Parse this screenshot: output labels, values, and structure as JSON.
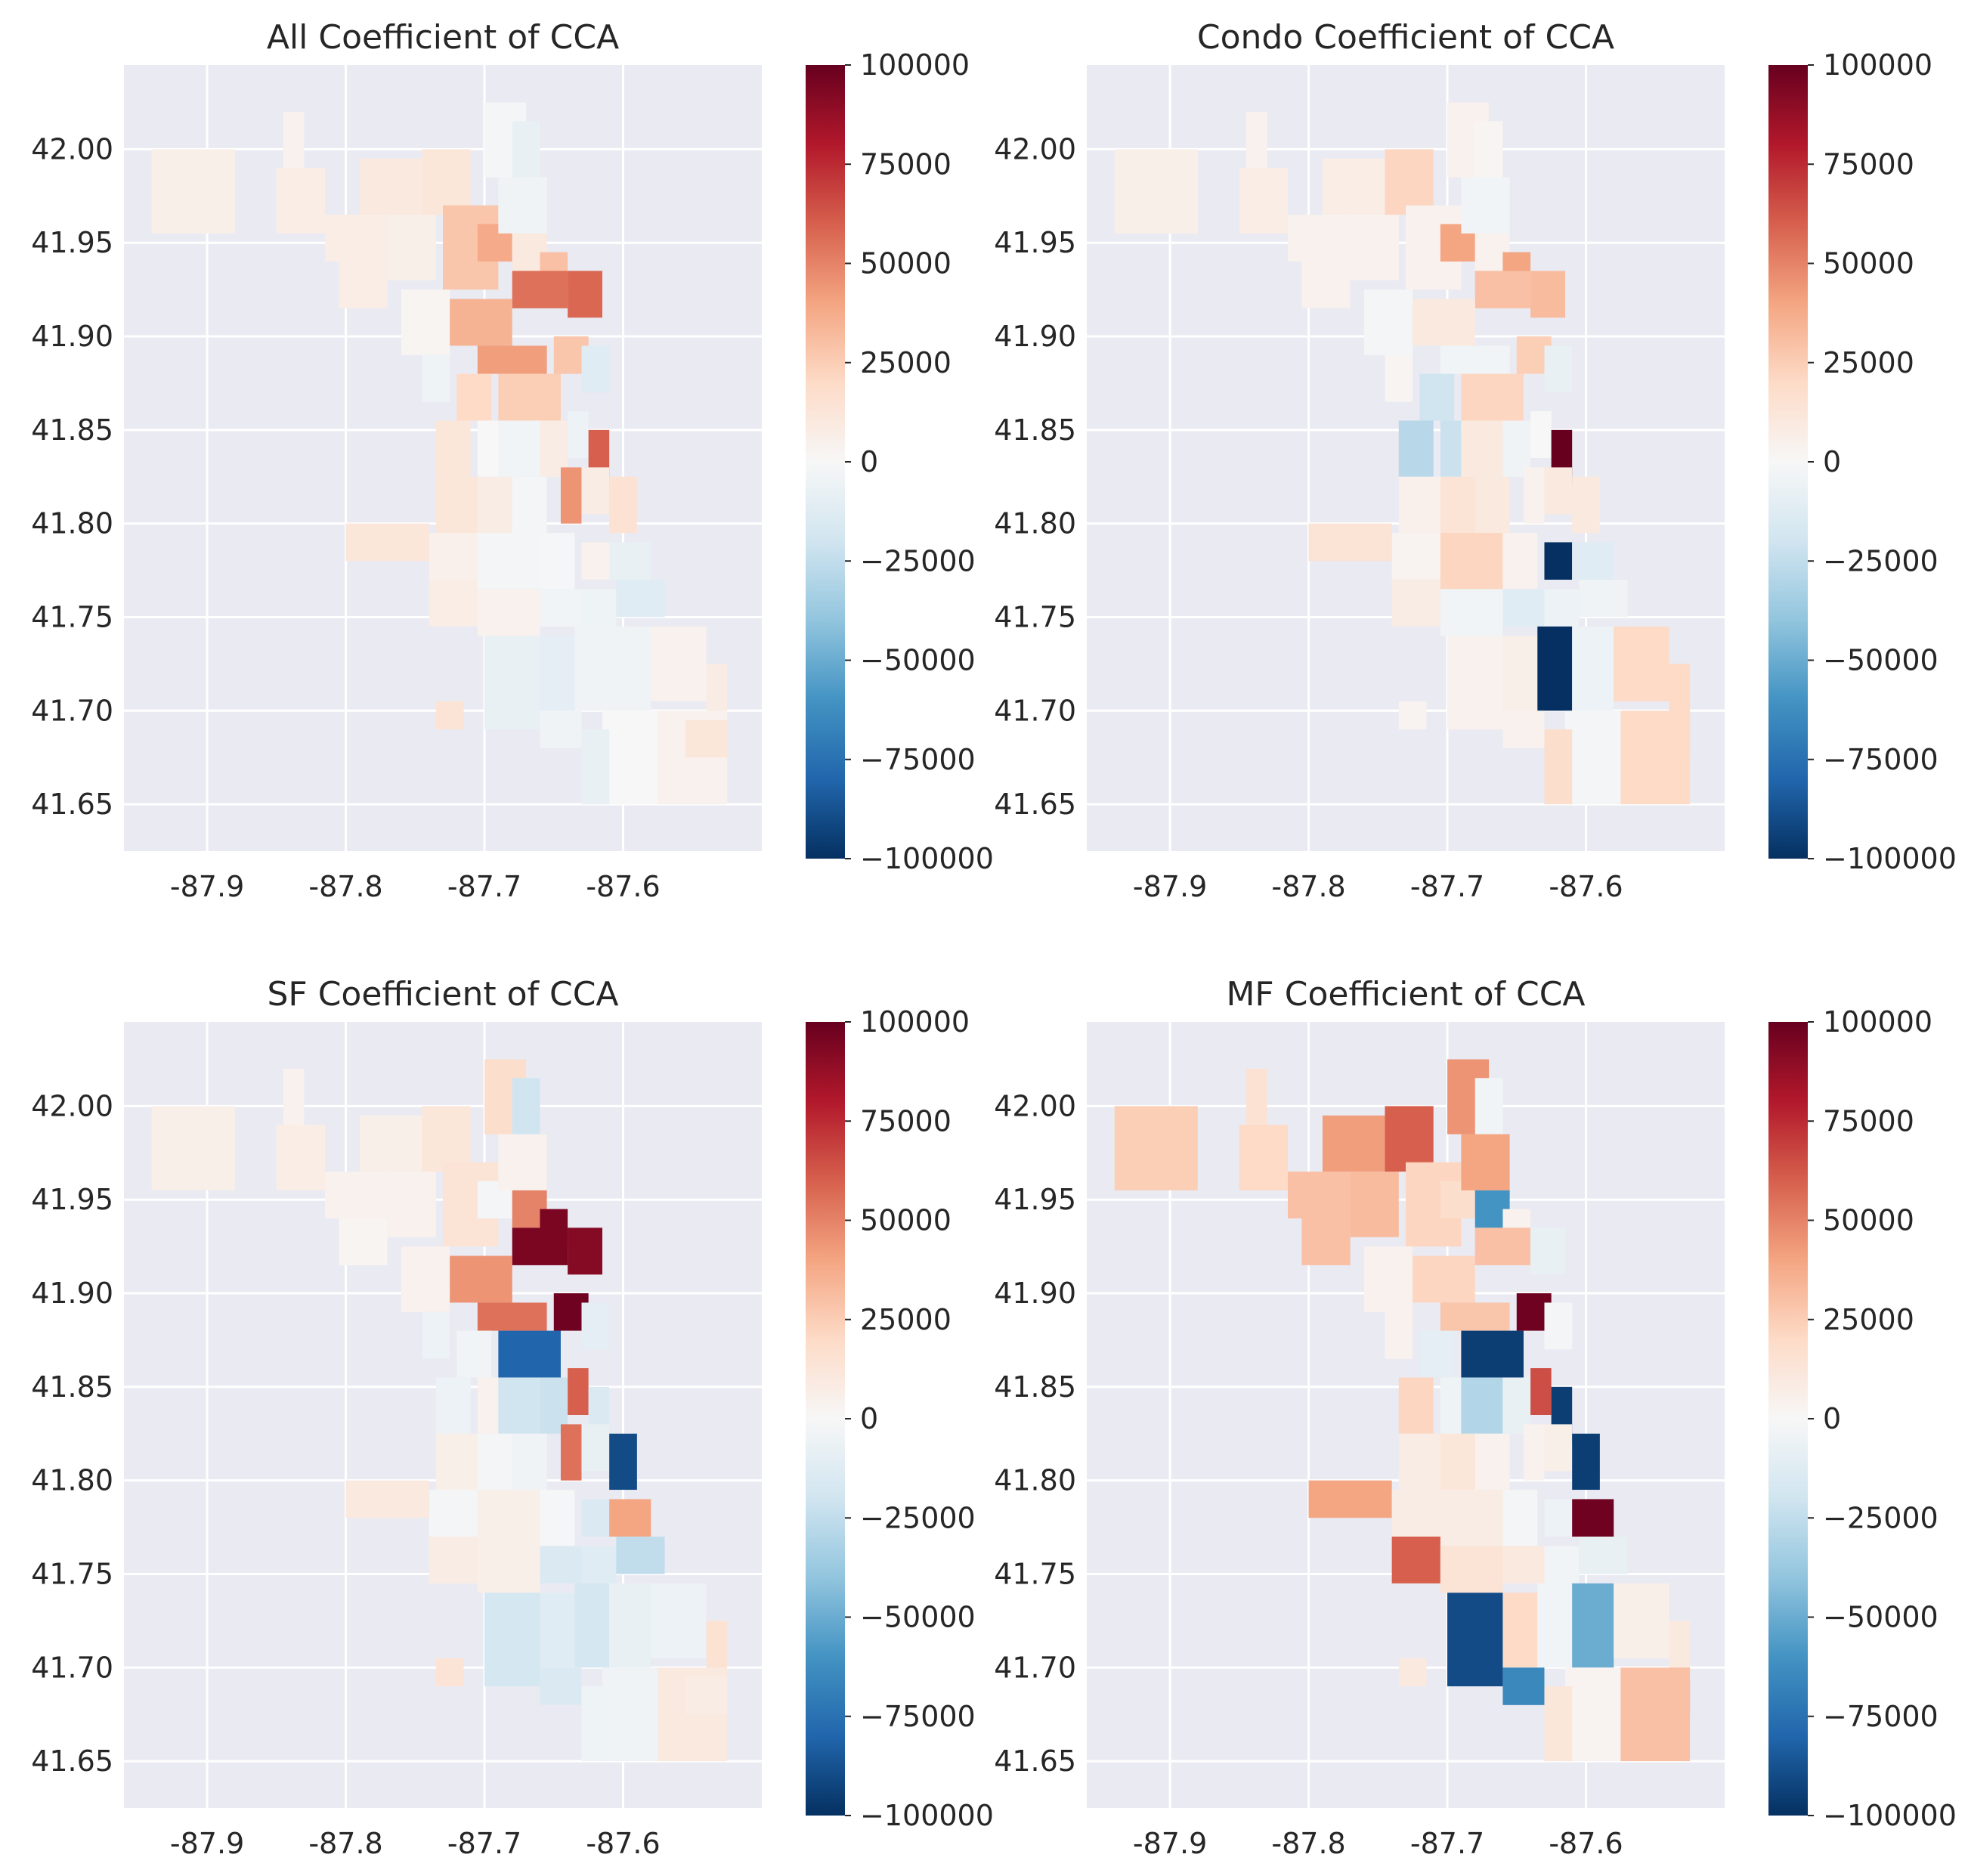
{
  "chart_data": [
    {
      "type": "heatmap",
      "title": "All Coefficient of CCA",
      "xlim": [
        -87.96,
        -87.5
      ],
      "ylim": [
        41.625,
        42.045
      ],
      "x_ticks": [
        "-87.9",
        "-87.8",
        "-87.7",
        "-87.6"
      ],
      "y_ticks": [
        "41.65",
        "41.70",
        "41.75",
        "41.80",
        "41.85",
        "41.90",
        "41.95",
        "42.00"
      ],
      "colorbar": {
        "min": -100000,
        "max": 100000,
        "ticks": [
          "100000",
          "75000",
          "50000",
          "25000",
          "0",
          "−25000",
          "−50000",
          "−75000",
          "−100000"
        ]
      },
      "grid": true
    },
    {
      "type": "heatmap",
      "title": "Condo Coefficient of CCA",
      "xlim": [
        -87.96,
        -87.5
      ],
      "ylim": [
        41.625,
        42.045
      ],
      "x_ticks": [
        "-87.9",
        "-87.8",
        "-87.7",
        "-87.6"
      ],
      "y_ticks": [
        "41.65",
        "41.70",
        "41.75",
        "41.80",
        "41.85",
        "41.90",
        "41.95",
        "42.00"
      ],
      "colorbar": {
        "min": -100000,
        "max": 100000,
        "ticks": [
          "100000",
          "75000",
          "50000",
          "25000",
          "0",
          "−25000",
          "−50000",
          "−75000",
          "−100000"
        ]
      },
      "grid": true
    },
    {
      "type": "heatmap",
      "title": "SF Coefficient of CCA",
      "xlim": [
        -87.96,
        -87.5
      ],
      "ylim": [
        41.625,
        42.045
      ],
      "x_ticks": [
        "-87.9",
        "-87.8",
        "-87.7",
        "-87.6"
      ],
      "y_ticks": [
        "41.65",
        "41.70",
        "41.75",
        "41.80",
        "41.85",
        "41.90",
        "41.95",
        "42.00"
      ],
      "colorbar": {
        "min": -100000,
        "max": 100000,
        "ticks": [
          "100000",
          "75000",
          "50000",
          "25000",
          "0",
          "−25000",
          "−50000",
          "−75000",
          "−100000"
        ]
      },
      "grid": true
    },
    {
      "type": "heatmap",
      "title": "MF Coefficient of CCA",
      "xlim": [
        -87.96,
        -87.5
      ],
      "ylim": [
        41.625,
        42.045
      ],
      "x_ticks": [
        "-87.9",
        "-87.8",
        "-87.7",
        "-87.6"
      ],
      "y_ticks": [
        "41.65",
        "41.70",
        "41.75",
        "41.80",
        "41.85",
        "41.90",
        "41.95",
        "42.00"
      ],
      "colorbar": {
        "min": -100000,
        "max": 100000,
        "ticks": [
          "100000",
          "75000",
          "50000",
          "25000",
          "0",
          "−25000",
          "−50000",
          "−75000",
          "−100000"
        ]
      },
      "grid": true
    }
  ],
  "colors": {
    "axes_bg": "#eaeaf2",
    "grid": "#ffffff",
    "text": "#262626",
    "colormap": "RdBu_r",
    "colormap_stops": [
      "#053061",
      "#2166ac",
      "#4393c3",
      "#92c5de",
      "#d1e5f0",
      "#f7f7f7",
      "#fddbc7",
      "#f4a582",
      "#d6604d",
      "#b2182b",
      "#67001f"
    ]
  }
}
